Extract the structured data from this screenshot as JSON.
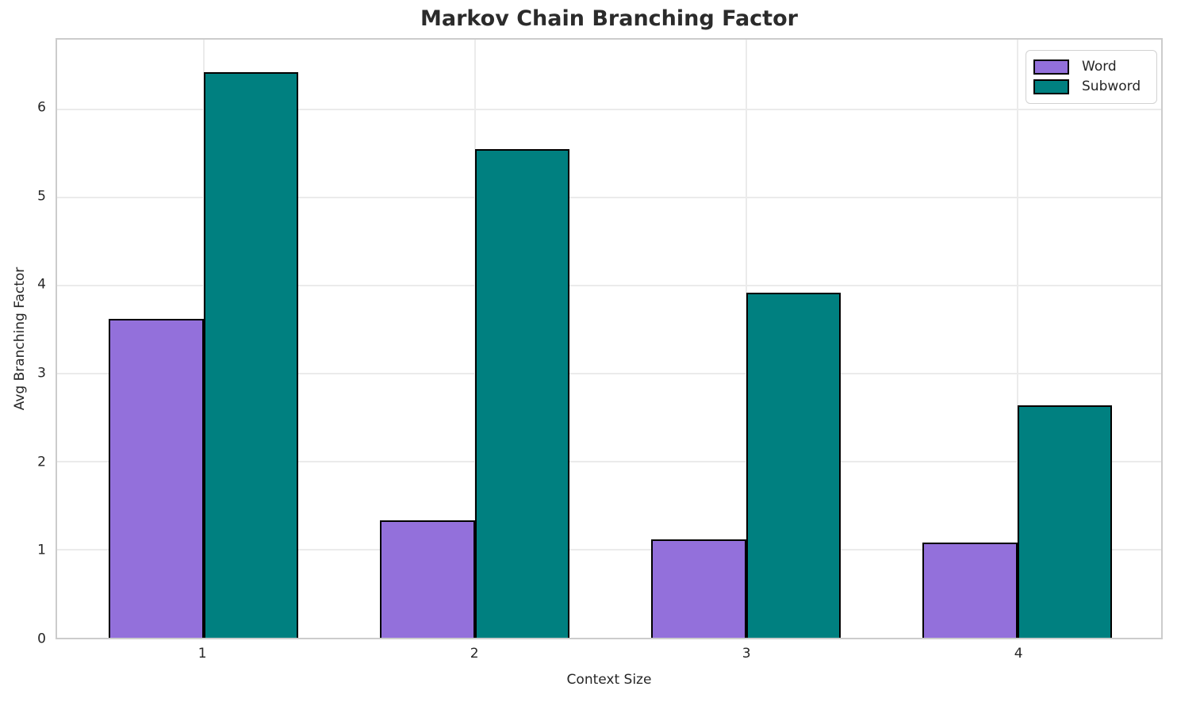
{
  "figure": {
    "title": "Markov Chain Branching Factor",
    "xlabel": "Context Size",
    "ylabel": "Avg Branching Factor"
  },
  "legend": {
    "position": "upper right",
    "items": [
      {
        "label": "Word",
        "color": "#9370DB"
      },
      {
        "label": "Subword",
        "color": "#008080"
      }
    ]
  },
  "chart_data": {
    "type": "bar",
    "title": "Markov Chain Branching Factor",
    "xlabel": "Context Size",
    "ylabel": "Avg Branching Factor",
    "categories": [
      "1",
      "2",
      "3",
      "4"
    ],
    "series": [
      {
        "name": "Word",
        "color": "#9370DB",
        "values": [
          3.62,
          1.33,
          1.12,
          1.08
        ]
      },
      {
        "name": "Subword",
        "color": "#008080",
        "values": [
          6.42,
          5.55,
          3.92,
          2.64
        ]
      }
    ],
    "yticks": [
      0,
      1,
      2,
      3,
      4,
      5,
      6
    ],
    "ylim": [
      0,
      6.79
    ],
    "xlim": [
      0.46,
      4.53
    ],
    "bar_width_units": 0.35,
    "grid": true,
    "legend_position": "upper right",
    "bar_edge_color": "#000000",
    "grid_color": "#ebebeb",
    "spine_color": "#cccccc",
    "text_color": "#262626"
  }
}
